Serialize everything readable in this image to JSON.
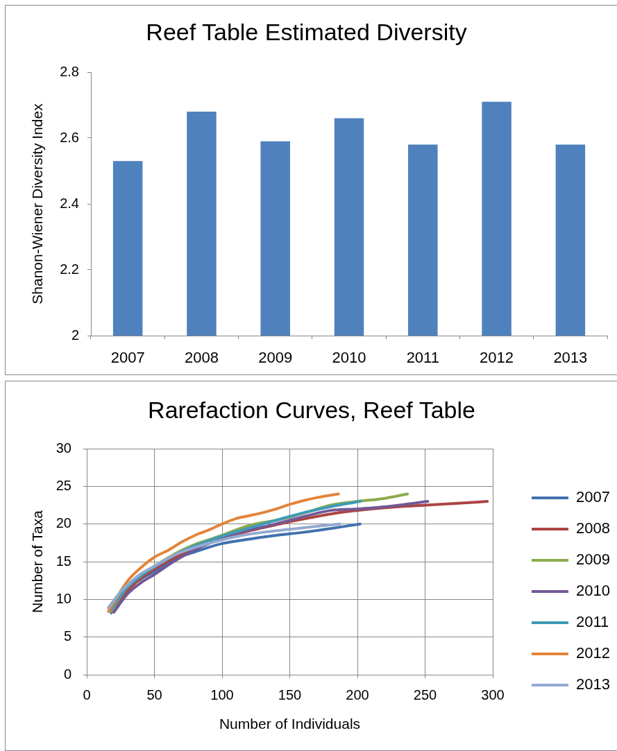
{
  "chart_data": [
    {
      "type": "bar",
      "title": "Reef Table Estimated Diversity",
      "ylabel": "Shanon-Wiener Diversity Index",
      "categories": [
        "2007",
        "2008",
        "2009",
        "2010",
        "2011",
        "2012",
        "2013"
      ],
      "values": [
        2.53,
        2.68,
        2.59,
        2.66,
        2.58,
        2.71,
        2.58
      ],
      "color": "#4f81bd",
      "ylim": [
        2,
        2.8
      ],
      "yticks": [
        2,
        2.2,
        2.4,
        2.6,
        2.8
      ],
      "grid": false
    },
    {
      "type": "line",
      "title": "Rarefaction Curves, Reef Table",
      "xlabel": "Number of Individuals",
      "ylabel": "Number of Taxa",
      "xlim": [
        0,
        300
      ],
      "xticks": [
        0,
        50,
        100,
        150,
        200,
        250,
        300
      ],
      "ylim": [
        0,
        30
      ],
      "yticks": [
        0,
        5,
        10,
        15,
        20,
        25,
        30
      ],
      "grid": true,
      "legend": "right",
      "marker": "none",
      "line_style": "solid",
      "series": [
        {
          "name": "2007",
          "color": "#4170ad",
          "x": [
            18,
            25,
            30,
            40,
            50,
            60,
            70,
            80,
            90,
            100,
            120,
            140,
            160,
            180,
            202
          ],
          "values": [
            8.2,
            10.0,
            11.3,
            12.7,
            13.7,
            14.8,
            15.7,
            16.3,
            16.9,
            17.4,
            18.0,
            18.5,
            18.9,
            19.4,
            20.0
          ]
        },
        {
          "name": "2008",
          "color": "#ad4442",
          "x": [
            20,
            30,
            40,
            50,
            60,
            70,
            80,
            90,
            100,
            110,
            120,
            130,
            140,
            150,
            170,
            190,
            210,
            230,
            250,
            270,
            296
          ],
          "values": [
            8.5,
            11.1,
            12.8,
            14.0,
            15.1,
            16.0,
            16.8,
            17.5,
            18.1,
            18.6,
            19.1,
            19.5,
            19.9,
            20.3,
            21.0,
            21.6,
            22.0,
            22.3,
            22.5,
            22.7,
            23.0
          ]
        },
        {
          "name": "2009",
          "color": "#8aab4e",
          "x": [
            18,
            25,
            30,
            40,
            50,
            60,
            70,
            80,
            90,
            100,
            110,
            120,
            130,
            140,
            150,
            165,
            180,
            200,
            220,
            237
          ],
          "values": [
            8.4,
            10.4,
            11.6,
            13.2,
            14.4,
            15.5,
            16.5,
            17.3,
            17.9,
            18.5,
            19.2,
            19.8,
            20.2,
            20.5,
            20.9,
            21.7,
            22.5,
            23.0,
            23.4,
            24.0
          ]
        },
        {
          "name": "2010",
          "color": "#735897",
          "x": [
            20,
            30,
            40,
            50,
            65,
            80,
            100,
            115,
            130,
            150,
            165,
            180,
            200,
            215,
            235,
            252
          ],
          "values": [
            8.3,
            10.7,
            12.2,
            13.3,
            15.1,
            16.6,
            18.1,
            19.0,
            19.6,
            20.5,
            21.2,
            21.8,
            22.0,
            22.2,
            22.6,
            23.0
          ]
        },
        {
          "name": "2011",
          "color": "#3f9bb6",
          "x": [
            18,
            25,
            30,
            40,
            50,
            65,
            80,
            100,
            115,
            130,
            150,
            165,
            180,
            202
          ],
          "values": [
            8.6,
            10.5,
            11.6,
            13.1,
            14.3,
            15.9,
            17.1,
            18.4,
            19.2,
            20.0,
            21.0,
            21.7,
            22.3,
            23.0
          ]
        },
        {
          "name": "2012",
          "color": "#e4843a",
          "x": [
            16,
            20,
            30,
            40,
            50,
            60,
            70,
            80,
            90,
            100,
            110,
            120,
            130,
            140,
            150,
            160,
            170,
            186
          ],
          "values": [
            8.4,
            9.6,
            12.4,
            14.2,
            15.6,
            16.5,
            17.6,
            18.5,
            19.2,
            20.0,
            20.7,
            21.1,
            21.5,
            22.0,
            22.6,
            23.1,
            23.5,
            24.0
          ]
        },
        {
          "name": "2013",
          "color": "#93a9d1",
          "x": [
            16,
            25,
            30,
            40,
            50,
            65,
            80,
            100,
            115,
            130,
            150,
            165,
            187
          ],
          "values": [
            8.9,
            11.0,
            11.9,
            13.4,
            14.4,
            15.9,
            16.9,
            17.9,
            18.5,
            18.9,
            19.3,
            19.6,
            20.0
          ]
        }
      ]
    }
  ]
}
